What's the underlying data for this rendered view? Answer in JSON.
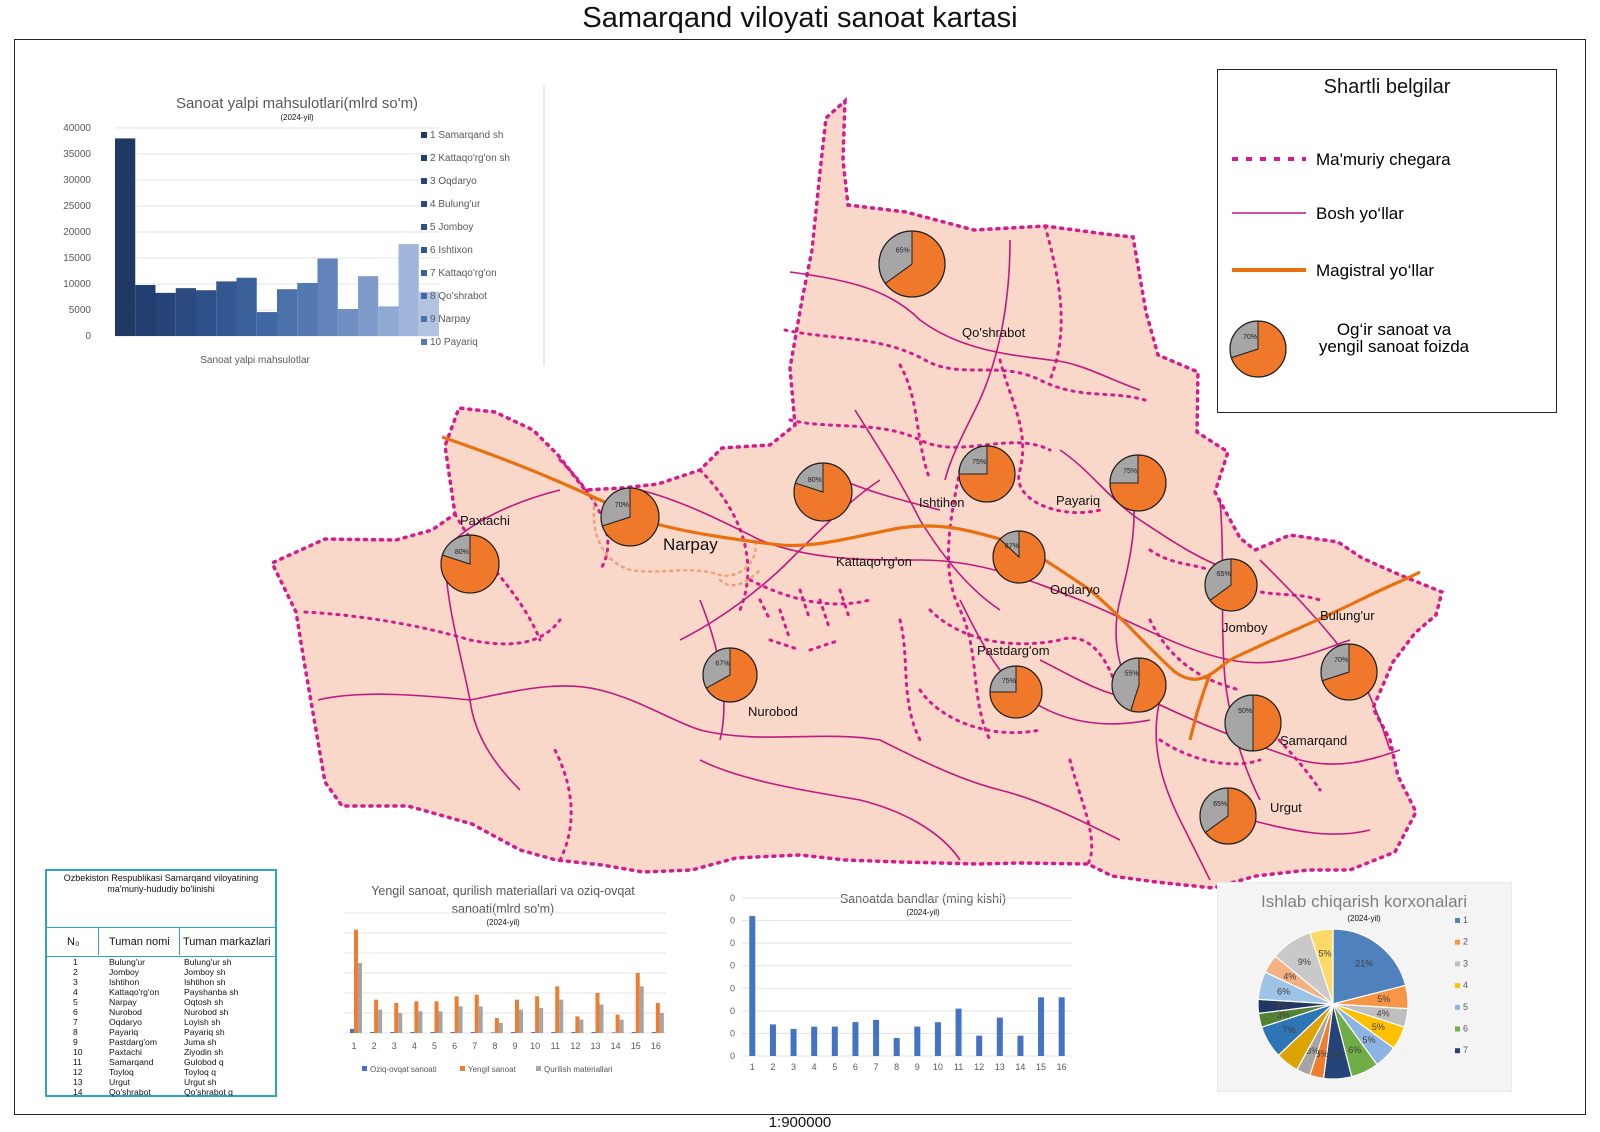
{
  "title": "Samarqand viloyati sanoat kartasi",
  "scale": "1:900000",
  "legend": {
    "title": "Shartli belgilar",
    "items": [
      {
        "label": "Ma'muriy chegara",
        "icon": "dotted-boundary-line"
      },
      {
        "label": "Bosh yo‘llar",
        "icon": "thin-road-line"
      },
      {
        "label": "Magistral yo‘llar",
        "icon": "thick-highway-line"
      },
      {
        "label": "Og‘ir sanoat va yengil sanoat foizda",
        "icon": "pie-icon",
        "pie_label": "70%"
      }
    ]
  },
  "colors": {
    "region_fill": "#fad8c9",
    "boundary": "#d81b8c",
    "road": "#c2187f",
    "highway": "#e8700e",
    "pie_heavy": "#f0782a",
    "pie_light": "#a6a6a6"
  },
  "map": {
    "district_labels": [
      "Qo'shrabot",
      "Paxtachi",
      "Narpay",
      "Kattaqo'rg'on",
      "Ishtihon",
      "Payariq",
      "Oqdaryo",
      "Jomboy",
      "Bulung'ur",
      "Pastdarg'om",
      "Nurobod",
      "Samarqand",
      "Urgut"
    ],
    "pies": [
      {
        "district": "Qo'shrabot",
        "heavy_pct": 65,
        "label": "65%"
      },
      {
        "district": "Paxtachi",
        "heavy_pct": 80,
        "label": "80%"
      },
      {
        "district": "Narpay",
        "heavy_pct": 70,
        "label": "70%"
      },
      {
        "district": "Kattaqo'rg'on",
        "heavy_pct": 80,
        "label": "80%"
      },
      {
        "district": "Ishtihon",
        "heavy_pct": 75,
        "label": "75%"
      },
      {
        "district": "Payariq",
        "heavy_pct": 75,
        "label": "75%"
      },
      {
        "district": "Oqdaryo",
        "heavy_pct": 87,
        "label": "87%"
      },
      {
        "district": "Jomboy",
        "heavy_pct": 65,
        "label": "65%"
      },
      {
        "district": "Bulung'ur",
        "heavy_pct": 70,
        "label": "70%"
      },
      {
        "district": "Nurobod",
        "heavy_pct": 67,
        "label": "67%"
      },
      {
        "district": "Pastdarg'om",
        "heavy_pct": 75,
        "label": "75%"
      },
      {
        "district": "Tayloq",
        "heavy_pct": 55,
        "label": "55%"
      },
      {
        "district": "Samarqand",
        "heavy_pct": 50,
        "label": "50%"
      },
      {
        "district": "Urgut",
        "heavy_pct": 65,
        "label": "65%"
      }
    ]
  },
  "table": {
    "title": "Ozbekiston Respublikasi Samarqand viloyatining ma'muriy-hududiy bo'linishi",
    "headers": [
      "N₀",
      "Tuman nomi",
      "Tuman markazlari"
    ],
    "rows": [
      [
        "1",
        "Bulung'ur",
        "Bulung'ur sh"
      ],
      [
        "2",
        "Jomboy",
        "Jomboy sh"
      ],
      [
        "3",
        "Ishtihon",
        "Ishtihon sh"
      ],
      [
        "4",
        "Kattaqo'rg'on",
        "Payshanba sh"
      ],
      [
        "5",
        "Narpay",
        "Oqtosh sh"
      ],
      [
        "6",
        "Nurobod",
        "Nurobod sh"
      ],
      [
        "7",
        "Oqdaryo",
        "Loyish sh"
      ],
      [
        "8",
        "Payariq",
        "Payariq sh"
      ],
      [
        "9",
        "Pastdarg'om",
        "Juma sh"
      ],
      [
        "10",
        "Paxtachi",
        "Ziyodin sh"
      ],
      [
        "11",
        "Samarqand",
        "Gulobod q"
      ],
      [
        "12",
        "Toyloq",
        "Toyloq q"
      ],
      [
        "13",
        "Urgut",
        "Urgut sh"
      ],
      [
        "14",
        "Qo'shrabot",
        "Qo'shrabot q"
      ]
    ]
  },
  "chart_data": [
    {
      "type": "bar",
      "title": "Sanoat yalpi mahsulotlari(mlrd so'm)",
      "subtitle": "(2024-yil)",
      "xlabel": "Sanoat yalpi mahsulotlar",
      "ylim": [
        0,
        40000
      ],
      "yticks": [
        0,
        5000,
        10000,
        15000,
        20000,
        25000,
        30000,
        35000,
        40000
      ],
      "grid": true,
      "legend_position": "right",
      "legend": [
        "1 Samarqand sh",
        "2 Kattaqo'rg'on sh",
        "3 Oqdaryo",
        "4 Bulung'ur",
        "5 Jomboy",
        "6 Ishtixon",
        "7 Kattaqo'rg'on",
        "8 Qo'shrabot",
        "9 Narpay",
        "10 Payariq"
      ],
      "values": [
        38000,
        9800,
        8300,
        9200,
        8800,
        10500,
        11200,
        4600,
        9000,
        10200,
        14900,
        5200,
        11500,
        5700,
        17700,
        8500
      ],
      "colors": [
        "#203864",
        "#223e6e",
        "#264478",
        "#2a4a80",
        "#2e5088",
        "#335891",
        "#3a609a",
        "#4168a2",
        "#4a71aa",
        "#5479b1",
        "#6183ba",
        "#6f8fc2",
        "#7e9bca",
        "#8fa9d2",
        "#a0b6da",
        "#b3c4e2"
      ]
    },
    {
      "type": "bar",
      "title": "Yengil sanoat, qurilish materiallari va oziq-ovqat sanoati(mlrd so'm)",
      "subtitle": "(2024-yil)",
      "categories": [
        "1",
        "2",
        "3",
        "4",
        "5",
        "6",
        "7",
        "8",
        "9",
        "10",
        "11",
        "12",
        "13",
        "14",
        "15",
        "16"
      ],
      "grid": true,
      "legend_position": "bottom",
      "series": [
        {
          "name": "Oziq-ovqat sanoati",
          "color": "#4472c4",
          "values": [
            1.2,
            0.3,
            0.3,
            0.3,
            0.3,
            0.3,
            0.3,
            0.2,
            0.3,
            0.3,
            0.3,
            0.3,
            0.3,
            0.2,
            0.3,
            0.3
          ]
        },
        {
          "name": "Yengil sanoat",
          "color": "#ed7d31",
          "values": [
            31,
            10,
            9,
            9.5,
            9.5,
            11,
            11.5,
            4.5,
            10,
            11,
            14,
            5,
            12,
            5.5,
            18,
            9
          ]
        },
        {
          "name": "Qurilish materiallari",
          "color": "#a5a5a5",
          "values": [
            21,
            7,
            6,
            6.5,
            6.5,
            8,
            8,
            3,
            7,
            7.5,
            10,
            4,
            8.5,
            4,
            14,
            6
          ]
        }
      ],
      "ylim": [
        0,
        36
      ]
    },
    {
      "type": "bar",
      "title": "Sanoatda bandlar (ming kishi)",
      "subtitle": "(2024-yil)",
      "categories": [
        "1",
        "2",
        "3",
        "4",
        "5",
        "6",
        "7",
        "8",
        "9",
        "10",
        "11",
        "12",
        "13",
        "14",
        "15",
        "16"
      ],
      "values": [
        62,
        14,
        12,
        13,
        13,
        15,
        16,
        8,
        13,
        15,
        21,
        9,
        17,
        9,
        26,
        26
      ],
      "ylim": [
        0,
        70
      ],
      "yticks": [
        0,
        10,
        20,
        30,
        40,
        50,
        60,
        70
      ],
      "grid": true,
      "color": "#4472c4"
    },
    {
      "type": "pie",
      "title": "Ishlab chiqarish korxonalari",
      "subtitle": "(2024-yil)",
      "legend_position": "right",
      "legend": [
        "1",
        "2",
        "3",
        "4",
        "5",
        "6",
        "7"
      ],
      "slices": [
        {
          "value": 21,
          "label": "21%",
          "color": "#4f81bd"
        },
        {
          "value": 5,
          "label": "5%",
          "color": "#f79646"
        },
        {
          "value": 4,
          "label": "4%",
          "color": "#bfbfbf"
        },
        {
          "value": 5,
          "label": "5%",
          "color": "#ffc000"
        },
        {
          "value": 5,
          "label": "5%",
          "color": "#8db3e2"
        },
        {
          "value": 6,
          "label": "6%",
          "color": "#70ad47"
        },
        {
          "value": 6,
          "label": "6%",
          "color": "#264478"
        },
        {
          "value": 3,
          "label": "3%",
          "color": "#ed7d31"
        },
        {
          "value": 3,
          "label": "3%",
          "color": "#a5a5a5"
        },
        {
          "value": 5,
          "label": "",
          "color": "#dca400"
        },
        {
          "value": 7,
          "label": "7%",
          "color": "#2e75b6"
        },
        {
          "value": 3,
          "label": "3%",
          "color": "#548235"
        },
        {
          "value": 3,
          "label": "3%",
          "color": "#1f3864"
        },
        {
          "value": 6,
          "label": "6%",
          "color": "#9dc3e6"
        },
        {
          "value": 4,
          "label": "4%",
          "color": "#f4b183"
        },
        {
          "value": 9,
          "label": "9%",
          "color": "#c9c9c9"
        },
        {
          "value": 5,
          "label": "5%",
          "color": "#ffd966"
        }
      ]
    }
  ]
}
